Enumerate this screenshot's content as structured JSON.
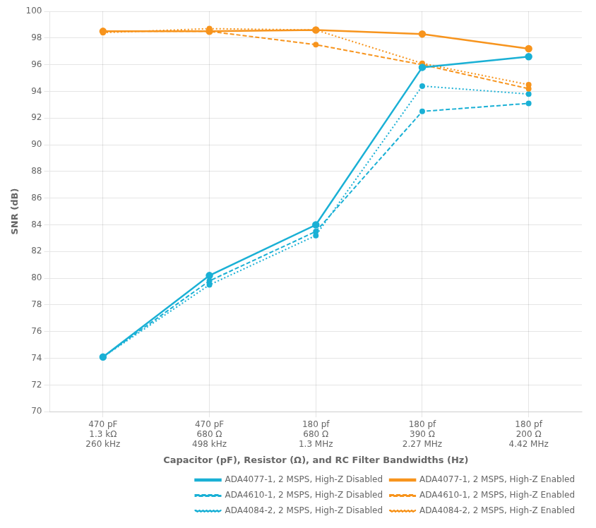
{
  "chart_data": {
    "type": "line",
    "categories": [
      "470 pF\n1.3 kΩ\n260 kHz",
      "470 pF\n680 Ω\n498 kHz",
      "180 pf\n680 Ω\n1.3 MHz",
      "180 pf\n390 Ω\n2.27 MHz",
      "180 pf\n200 Ω\n4.42 MHz"
    ],
    "xlabel": "Capacitor (pF), Resistor (Ω), and RC Filter Bandwidths (Hz)",
    "ylabel": "SNR (dB)",
    "ylim": [
      70,
      100
    ],
    "yticks": [
      70,
      72,
      74,
      76,
      78,
      80,
      82,
      84,
      86,
      88,
      90,
      92,
      94,
      96,
      98,
      100
    ],
    "grid": true,
    "legend": "lower right",
    "series": [
      {
        "name": "ADA4077-1, 2 MSPS, High-Z Disabled",
        "color": "#1AB0D5",
        "line_style": "solid",
        "marker": "circle",
        "values": [
          74.1,
          80.2,
          84.0,
          95.8,
          96.6
        ]
      },
      {
        "name": "ADA4077-1, 2 MSPS, High-Z Enabled",
        "color": "#F7941D",
        "line_style": "solid",
        "marker": "circle",
        "values": [
          98.5,
          98.5,
          98.6,
          98.3,
          97.2
        ]
      },
      {
        "name": "ADA4610-1, 2 MSPS, High-Z Disabled",
        "color": "#1AB0D5",
        "line_style": "dashed",
        "marker": "circle",
        "values": [
          74.1,
          79.8,
          83.5,
          92.5,
          93.1
        ]
      },
      {
        "name": "ADA4610-1, 2 MSPS, High-Z Enabled",
        "color": "#F7941D",
        "line_style": "dashed",
        "marker": "circle",
        "values": [
          98.5,
          98.5,
          97.5,
          96.0,
          94.2
        ]
      },
      {
        "name": "ADA4084-2, 2 MSPS, High-Z Disabled",
        "color": "#1AB0D5",
        "line_style": "dotted",
        "marker": "circle",
        "values": [
          74.1,
          79.5,
          83.2,
          94.4,
          93.8
        ]
      },
      {
        "name": "ADA4084-2, 2 MSPS, High-Z Enabled",
        "color": "#F7941D",
        "line_style": "dotted",
        "marker": "circle",
        "values": [
          98.4,
          98.7,
          98.6,
          96.1,
          94.5
        ]
      }
    ]
  }
}
